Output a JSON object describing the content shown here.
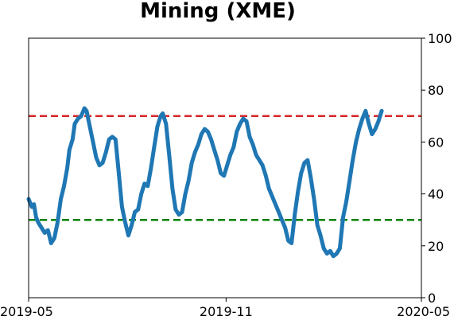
{
  "chart_data": {
    "type": "line",
    "title": "Mining (XME)",
    "xlabel": "",
    "ylabel": "",
    "ylim": [
      0,
      100
    ],
    "xlim": [
      "2019-05-01",
      "2020-05-01"
    ],
    "x_ticks": [
      "2019-05",
      "2019-11",
      "2020-05"
    ],
    "y_ticks": [
      0,
      20,
      40,
      60,
      80,
      100
    ],
    "y_axis_side": "right",
    "grid": false,
    "reference_lines": [
      {
        "y": 70,
        "color": "#d62728",
        "style": "dashed"
      },
      {
        "y": 30,
        "color": "#008000",
        "style": "dashed"
      }
    ],
    "series": [
      {
        "color": "#1f77b4",
        "points": [
          [
            "2019-05-01",
            38
          ],
          [
            "2019-05-04",
            35
          ],
          [
            "2019-05-06",
            36
          ],
          [
            "2019-05-08",
            31
          ],
          [
            "2019-05-10",
            29
          ],
          [
            "2019-05-13",
            27
          ],
          [
            "2019-05-16",
            25
          ],
          [
            "2019-05-19",
            26
          ],
          [
            "2019-05-22",
            21
          ],
          [
            "2019-05-25",
            23
          ],
          [
            "2019-05-28",
            29
          ],
          [
            "2019-05-31",
            38
          ],
          [
            "2019-06-03",
            43
          ],
          [
            "2019-06-06",
            50
          ],
          [
            "2019-06-08",
            57
          ],
          [
            "2019-06-11",
            61
          ],
          [
            "2019-06-13",
            67
          ],
          [
            "2019-06-16",
            69
          ],
          [
            "2019-06-19",
            70
          ],
          [
            "2019-06-22",
            73
          ],
          [
            "2019-06-24",
            72
          ],
          [
            "2019-06-27",
            66
          ],
          [
            "2019-06-30",
            60
          ],
          [
            "2019-07-03",
            54
          ],
          [
            "2019-07-06",
            51
          ],
          [
            "2019-07-09",
            52
          ],
          [
            "2019-07-12",
            56
          ],
          [
            "2019-07-15",
            61
          ],
          [
            "2019-07-18",
            62
          ],
          [
            "2019-07-21",
            61
          ],
          [
            "2019-07-24",
            48
          ],
          [
            "2019-07-27",
            35
          ],
          [
            "2019-07-30",
            29
          ],
          [
            "2019-08-02",
            24
          ],
          [
            "2019-08-05",
            28
          ],
          [
            "2019-08-08",
            33
          ],
          [
            "2019-08-11",
            34
          ],
          [
            "2019-08-14",
            40
          ],
          [
            "2019-08-17",
            44
          ],
          [
            "2019-08-20",
            43
          ],
          [
            "2019-08-23",
            50
          ],
          [
            "2019-08-26",
            58
          ],
          [
            "2019-08-29",
            66
          ],
          [
            "2019-09-01",
            70
          ],
          [
            "2019-09-03",
            71
          ],
          [
            "2019-09-06",
            67
          ],
          [
            "2019-09-09",
            55
          ],
          [
            "2019-09-12",
            42
          ],
          [
            "2019-09-15",
            34
          ],
          [
            "2019-09-18",
            32
          ],
          [
            "2019-09-21",
            33
          ],
          [
            "2019-09-24",
            40
          ],
          [
            "2019-09-27",
            45
          ],
          [
            "2019-09-30",
            52
          ],
          [
            "2019-10-03",
            56
          ],
          [
            "2019-10-06",
            59
          ],
          [
            "2019-10-09",
            63
          ],
          [
            "2019-10-12",
            65
          ],
          [
            "2019-10-15",
            64
          ],
          [
            "2019-10-18",
            61
          ],
          [
            "2019-10-21",
            57
          ],
          [
            "2019-10-24",
            53
          ],
          [
            "2019-10-27",
            48
          ],
          [
            "2019-10-30",
            47
          ],
          [
            "2019-11-02",
            51
          ],
          [
            "2019-11-05",
            55
          ],
          [
            "2019-11-08",
            58
          ],
          [
            "2019-11-11",
            64
          ],
          [
            "2019-11-14",
            67
          ],
          [
            "2019-11-17",
            69
          ],
          [
            "2019-11-20",
            68
          ],
          [
            "2019-11-23",
            62
          ],
          [
            "2019-11-26",
            59
          ],
          [
            "2019-11-29",
            55
          ],
          [
            "2019-12-02",
            53
          ],
          [
            "2019-12-05",
            51
          ],
          [
            "2019-12-08",
            47
          ],
          [
            "2019-12-11",
            42
          ],
          [
            "2019-12-14",
            39
          ],
          [
            "2019-12-17",
            36
          ],
          [
            "2019-12-20",
            33
          ],
          [
            "2019-12-23",
            30
          ],
          [
            "2019-12-26",
            27
          ],
          [
            "2019-12-29",
            22
          ],
          [
            "2020-01-01",
            21
          ],
          [
            "2020-01-04",
            32
          ],
          [
            "2020-01-07",
            41
          ],
          [
            "2020-01-10",
            48
          ],
          [
            "2020-01-13",
            52
          ],
          [
            "2020-01-16",
            53
          ],
          [
            "2020-01-19",
            46
          ],
          [
            "2020-01-22",
            38
          ],
          [
            "2020-01-25",
            28
          ],
          [
            "2020-01-28",
            24
          ],
          [
            "2020-01-31",
            19
          ],
          [
            "2020-02-03",
            17
          ],
          [
            "2020-02-06",
            18
          ],
          [
            "2020-02-09",
            16
          ],
          [
            "2020-02-12",
            17
          ],
          [
            "2020-02-15",
            19
          ],
          [
            "2020-02-18",
            31
          ],
          [
            "2020-02-21",
            37
          ],
          [
            "2020-02-24",
            45
          ],
          [
            "2020-02-27",
            53
          ],
          [
            "2020-03-01",
            60
          ],
          [
            "2020-03-04",
            65
          ],
          [
            "2020-03-07",
            69
          ],
          [
            "2020-03-10",
            72
          ],
          [
            "2020-03-13",
            67
          ],
          [
            "2020-03-16",
            63
          ],
          [
            "2020-03-19",
            65
          ],
          [
            "2020-03-22",
            68
          ],
          [
            "2020-03-25",
            72
          ]
        ]
      }
    ]
  }
}
